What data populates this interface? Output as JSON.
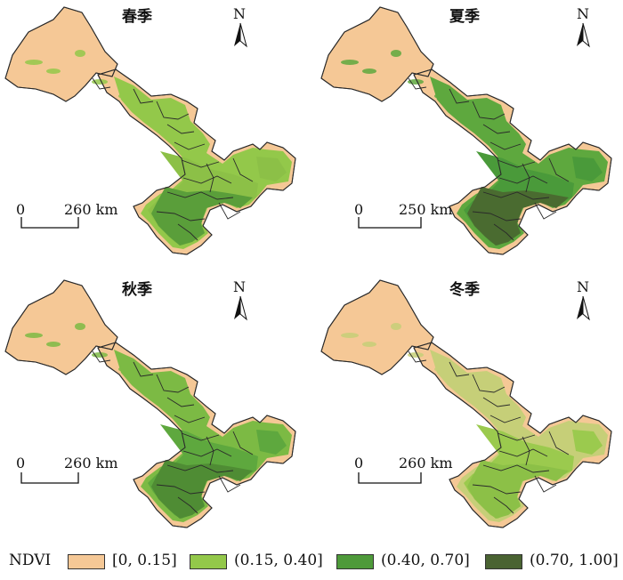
{
  "panels": [
    {
      "id": "spring",
      "title": "春季",
      "north": "N",
      "scale_zero": "0",
      "scale_label": "260 km",
      "fills": {
        "base": "#f5c896",
        "mid": "#93c84a",
        "upper": "#8cc047",
        "dense": "#5a9e3a"
      }
    },
    {
      "id": "summer",
      "title": "夏季",
      "north": "N",
      "scale_zero": "0",
      "scale_label": "250 km",
      "fills": {
        "base": "#f5c896",
        "mid": "#5ea83e",
        "upper": "#4a9a3a",
        "dense": "#4a6b30"
      }
    },
    {
      "id": "autumn",
      "title": "秋季",
      "north": "N",
      "scale_zero": "0",
      "scale_label": "260 km",
      "fills": {
        "base": "#f5c896",
        "mid": "#7cba44",
        "upper": "#5ea83e",
        "dense": "#4f8c34"
      }
    },
    {
      "id": "winter",
      "title": "冬季",
      "north": "N",
      "scale_zero": "0",
      "scale_label": "260 km",
      "fills": {
        "base": "#f5c896",
        "mid": "#c6cf78",
        "upper": "#9bca4e",
        "dense": "#8cc047"
      }
    }
  ],
  "legend": {
    "title": "NDVI",
    "classes": [
      {
        "label": "[0, 0.15]",
        "color": "#f5c896"
      },
      {
        "label": "(0.15, 0.40]",
        "color": "#93c84a"
      },
      {
        "label": "(0.40, 0.70]",
        "color": "#4e9a3a"
      },
      {
        "label": "(0.70, 1.00]",
        "color": "#4a6332"
      }
    ]
  }
}
